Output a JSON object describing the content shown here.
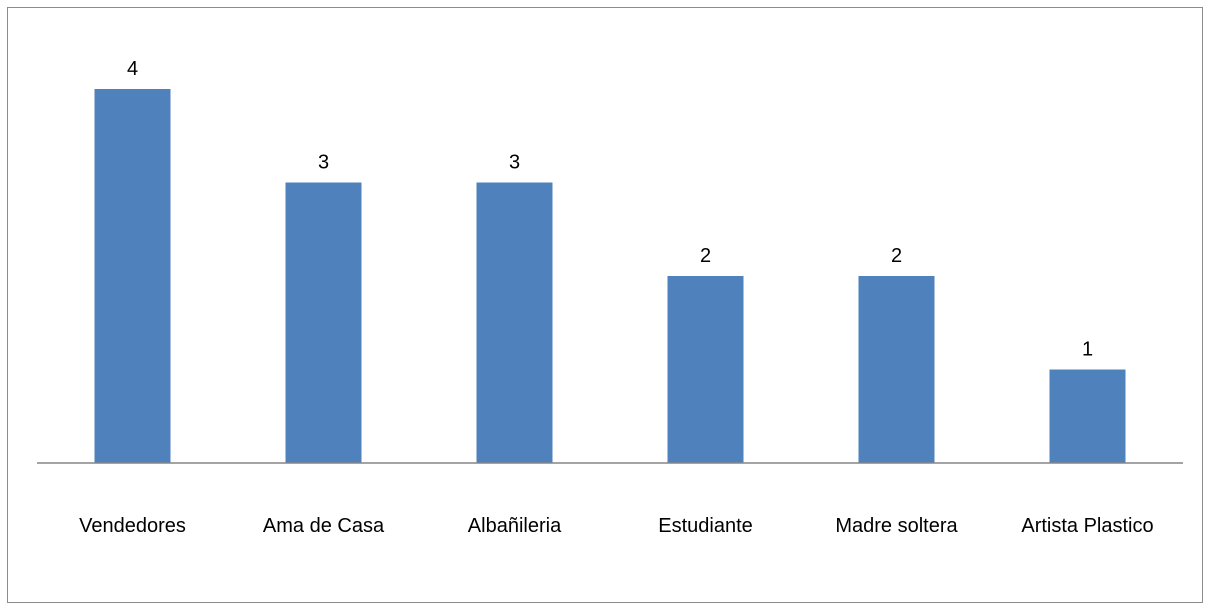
{
  "chart_data": {
    "type": "bar",
    "categories": [
      "Vendedores",
      "Ama de Casa",
      "Albañileria",
      "Estudiante",
      "Madre soltera",
      "Artista Plastico"
    ],
    "values": [
      4,
      3,
      3,
      2,
      2,
      1
    ],
    "title": "",
    "xlabel": "",
    "ylabel": "",
    "ylim": [
      0,
      4.6
    ],
    "grid": false,
    "data_labels": true,
    "bar_color": "#4f81bd",
    "axis_color": "#868686"
  }
}
